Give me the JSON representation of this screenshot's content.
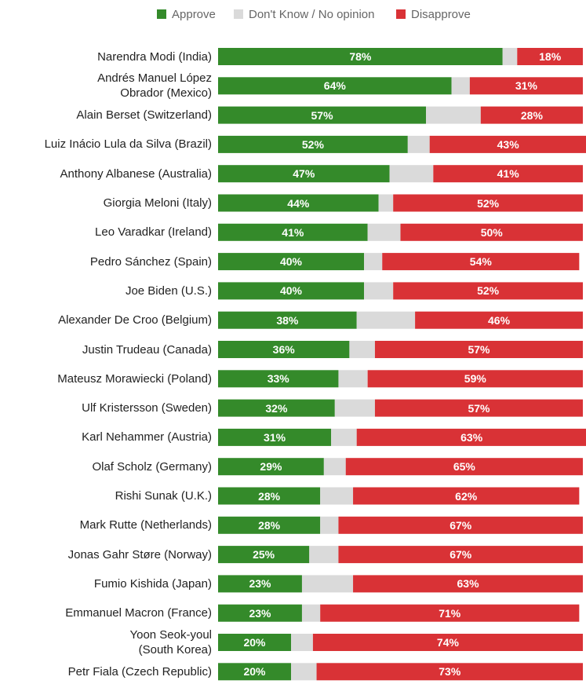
{
  "chart_data": {
    "type": "bar",
    "orientation": "horizontal",
    "stacked": true,
    "title": "",
    "xlabel": "",
    "ylabel": "",
    "xlim": [
      0,
      100
    ],
    "grid": false,
    "legend_position": "top-center",
    "categories": [
      "Narendra Modi (India)",
      "Andrés Manuel López\nObrador (Mexico)",
      "Alain Berset (Switzerland)",
      "Luiz Inácio Lula da Silva (Brazil)",
      "Anthony Albanese (Australia)",
      "Giorgia Meloni (Italy)",
      "Leo Varadkar (Ireland)",
      "Pedro Sánchez (Spain)",
      "Joe Biden (U.S.)",
      "Alexander De Croo (Belgium)",
      "Justin Trudeau (Canada)",
      "Mateusz Morawiecki (Poland)",
      "Ulf Kristersson (Sweden)",
      "Karl Nehammer (Austria)",
      "Olaf Scholz (Germany)",
      "Rishi Sunak (U.K.)",
      "Mark Rutte (Netherlands)",
      "Jonas Gahr Støre (Norway)",
      "Fumio Kishida (Japan)",
      "Emmanuel Macron (France)",
      "Yoon Seok-youl\n(South Korea)",
      "Petr Fiala (Czech Republic)"
    ],
    "series": [
      {
        "name": "Approve",
        "color": "#348a2a",
        "values": [
          78,
          64,
          57,
          52,
          47,
          44,
          41,
          40,
          40,
          38,
          36,
          33,
          32,
          31,
          29,
          28,
          28,
          25,
          23,
          23,
          20,
          20
        ],
        "labels": [
          "78%",
          "64%",
          "57%",
          "52%",
          "47%",
          "44%",
          "41%",
          "40%",
          "40%",
          "38%",
          "36%",
          "33%",
          "32%",
          "31%",
          "29%",
          "28%",
          "28%",
          "25%",
          "23%",
          "23%",
          "20%",
          "20%"
        ]
      },
      {
        "name": "Don't Know / No opinion",
        "color": "#dadada",
        "values": [
          4,
          5,
          15,
          6,
          12,
          4,
          9,
          5,
          8,
          16,
          7,
          8,
          11,
          7,
          6,
          9,
          5,
          8,
          14,
          5,
          6,
          7
        ]
      },
      {
        "name": "Disapprove",
        "color": "#d93236",
        "values": [
          18,
          31,
          28,
          43,
          41,
          52,
          50,
          54,
          52,
          46,
          57,
          59,
          57,
          63,
          65,
          62,
          67,
          67,
          63,
          71,
          74,
          73
        ],
        "labels": [
          "18%",
          "31%",
          "28%",
          "43%",
          "41%",
          "52%",
          "50%",
          "54%",
          "52%",
          "46%",
          "57%",
          "59%",
          "57%",
          "63%",
          "65%",
          "62%",
          "67%",
          "67%",
          "63%",
          "71%",
          "74%",
          "73%"
        ]
      }
    ]
  }
}
